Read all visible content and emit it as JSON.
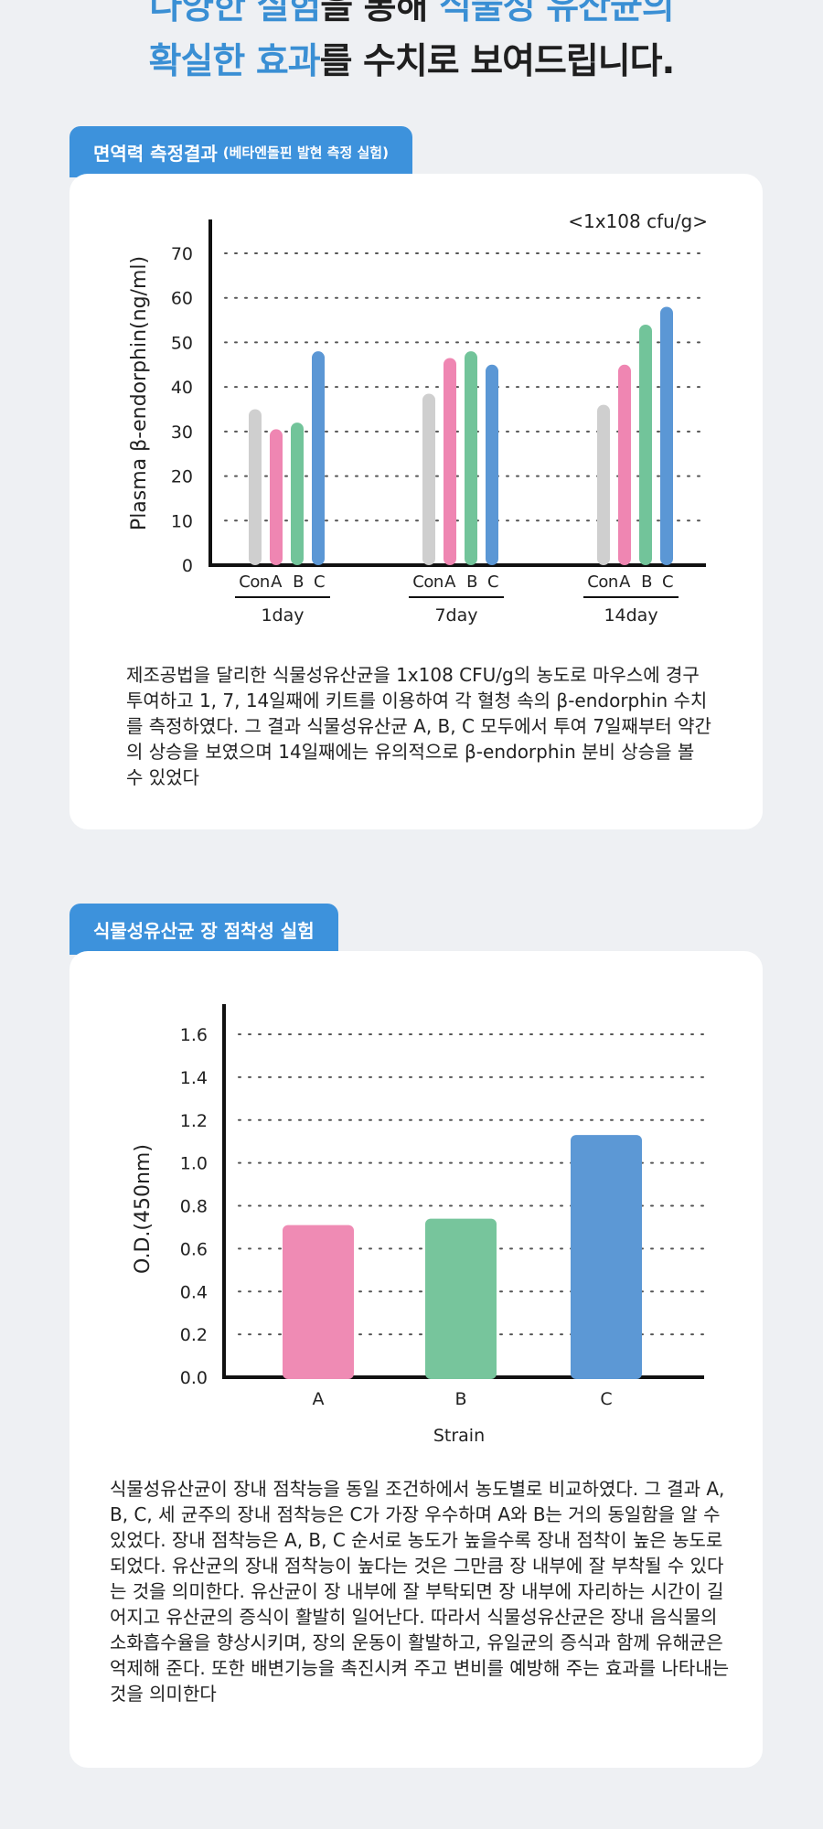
{
  "headline": {
    "line1": [
      {
        "text": "다양한 실험",
        "hl": true
      },
      {
        "text": "을 통해 ",
        "hl": false
      },
      {
        "text": "식물성 유산균의",
        "hl": true
      }
    ],
    "line2": [
      {
        "text": "확실한 효과",
        "hl": true
      },
      {
        "text": "를 수치로 보여드립니다.",
        "hl": false
      }
    ]
  },
  "section1": {
    "tab_title": "면역력 측정결과",
    "tab_subtitle": "(베타엔돌핀 발현 측정 실험)",
    "description": "제조공법을 달리한 식물성유산균을 1x108 CFU/g의 농도로 마우스에 경구 투여하고 1, 7, 14일째에 키트를 이용하여 각 혈청 속의 β-endorphin 수치를 측정하였다. 그 결과 식물성유산균 A, B, C 모두에서 투여 7일째부터 약간의 상승을 보였으며 14일째에는 유의적으로 β-endorphin 분비 상승을 볼 수 있었다"
  },
  "section2": {
    "tab_title": "식물성유산균 장 점착성 실험",
    "description": "식물성유산균이 장내 점착능을 동일 조건하에서 농도별로 비교하였다. 그 결과 A, B, C, 세 균주의 장내 점착능은 C가 가장 우수하며 A와 B는 거의 동일함을 알 수 있었다. 장내 점착능은 A, B, C 순서로 농도가 높을수록 장내 점착이 높은 농도로 되었다. 유산균의 장내 점착능이 높다는 것은 그만큼 장 내부에 잘 부착될 수 있다는 것을 의미한다. 유산균이 장 내부에 잘 부탁되면 장 내부에 자리하는 시간이 길어지고 유산균의 증식이 활발히 일어난다. 따라서 식물성유산균은 장내 음식물의 소화흡수율을 향상시키며, 장의 운동이 활발하고, 유일균의 증식과 함께 유해균은 억제해 준다. 또한 배변기능을 촉진시켜 주고 변비를 예방해 주는 효과를 나타내는 것을 의미한다"
  },
  "chart_data": [
    {
      "type": "bar",
      "title": "",
      "annotation": "<1x108 cfu/g>",
      "ylabel": "Plasma β-endorphin(ng/ml)",
      "xlabel": "",
      "ylim": [
        0,
        70
      ],
      "yticks": [
        0,
        10,
        20,
        30,
        40,
        50,
        60,
        70
      ],
      "grid": true,
      "bar_labels": [
        "Con",
        "A",
        "B",
        "C"
      ],
      "colors": [
        "#cfcfcf",
        "#ef86b2",
        "#72c49a",
        "#5b97d5"
      ],
      "groups": [
        {
          "label": "1day",
          "values": [
            35,
            30.5,
            32,
            48
          ]
        },
        {
          "label": "7day",
          "values": [
            38.5,
            46.5,
            48,
            45
          ]
        },
        {
          "label": "14day",
          "values": [
            36,
            45,
            54,
            58
          ]
        }
      ]
    },
    {
      "type": "bar",
      "title": "",
      "ylabel": "O.D.(450nm)",
      "xlabel": "Strain",
      "ylim": [
        0,
        1.6
      ],
      "yticks": [
        "0.0",
        "0.2",
        "0.4",
        "0.6",
        "0.8",
        "1.0",
        "1.2",
        "1.4",
        "1.6"
      ],
      "grid": true,
      "categories": [
        "A",
        "B",
        "C"
      ],
      "values": [
        0.71,
        0.74,
        1.13
      ],
      "colors": [
        "#ef8bb4",
        "#77c59c",
        "#5c98d5"
      ]
    }
  ]
}
